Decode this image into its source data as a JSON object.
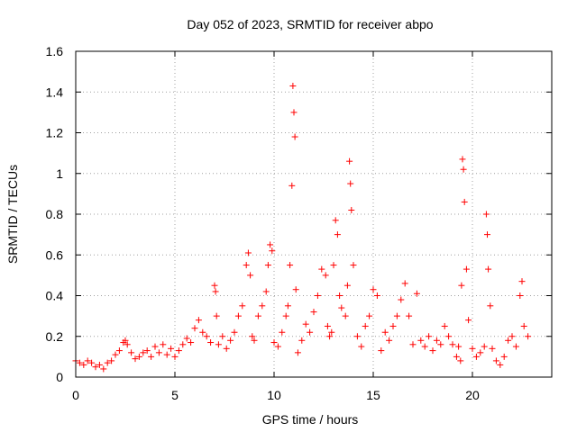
{
  "chart_data": {
    "type": "scatter",
    "title": "Day 052 of 2023, SRMTID for receiver abpo",
    "xlabel": "GPS time / hours",
    "ylabel": "SRMTID / TECUs",
    "xlim": [
      0,
      24
    ],
    "ylim": [
      0,
      1.6
    ],
    "xticks": [
      "0",
      "5",
      "10",
      "15",
      "20"
    ],
    "xtick_values": [
      0,
      5,
      10,
      15,
      20
    ],
    "yticks": [
      "0",
      "0.2",
      "0.4",
      "0.6",
      "0.8",
      "1",
      "1.2",
      "1.4",
      "1.6"
    ],
    "ytick_values": [
      0,
      0.2,
      0.4,
      0.6,
      0.8,
      1.0,
      1.2,
      1.4,
      1.6
    ],
    "grid": true,
    "marker": "+",
    "color": "#ff0000",
    "series": [
      {
        "name": "SRMTID",
        "x": [
          0.0,
          0.2,
          0.4,
          0.6,
          0.8,
          1.0,
          1.2,
          1.4,
          1.6,
          1.8,
          2.0,
          2.2,
          2.4,
          2.5,
          2.6,
          2.8,
          3.0,
          3.2,
          3.4,
          3.6,
          3.8,
          4.0,
          4.2,
          4.4,
          4.6,
          4.8,
          5.0,
          5.2,
          5.4,
          5.6,
          5.8,
          6.0,
          6.2,
          6.4,
          6.6,
          6.8,
          7.0,
          7.05,
          7.1,
          7.2,
          7.4,
          7.6,
          7.8,
          8.0,
          8.2,
          8.4,
          8.6,
          8.7,
          8.8,
          8.9,
          9.0,
          9.2,
          9.4,
          9.6,
          9.7,
          9.8,
          9.9,
          10.0,
          10.2,
          10.4,
          10.6,
          10.7,
          10.8,
          10.9,
          10.95,
          11.0,
          11.05,
          11.1,
          11.2,
          11.4,
          11.6,
          11.8,
          12.0,
          12.2,
          12.4,
          12.6,
          12.7,
          12.8,
          12.9,
          13.0,
          13.1,
          13.2,
          13.3,
          13.4,
          13.6,
          13.7,
          13.8,
          13.85,
          13.9,
          14.0,
          14.2,
          14.4,
          14.6,
          14.8,
          15.0,
          15.2,
          15.4,
          15.6,
          15.8,
          16.0,
          16.2,
          16.4,
          16.6,
          16.8,
          17.0,
          17.2,
          17.4,
          17.6,
          17.8,
          18.0,
          18.2,
          18.4,
          18.6,
          18.8,
          19.0,
          19.2,
          19.3,
          19.4,
          19.45,
          19.5,
          19.55,
          19.6,
          19.7,
          19.8,
          20.0,
          20.2,
          20.4,
          20.6,
          20.7,
          20.75,
          20.8,
          20.9,
          21.0,
          21.2,
          21.4,
          21.6,
          21.8,
          22.0,
          22.2,
          22.4,
          22.5,
          22.6,
          22.8
        ],
        "y": [
          0.08,
          0.07,
          0.06,
          0.08,
          0.07,
          0.05,
          0.06,
          0.04,
          0.07,
          0.08,
          0.11,
          0.13,
          0.17,
          0.18,
          0.16,
          0.12,
          0.09,
          0.1,
          0.12,
          0.13,
          0.1,
          0.15,
          0.12,
          0.16,
          0.11,
          0.14,
          0.1,
          0.13,
          0.16,
          0.19,
          0.17,
          0.24,
          0.28,
          0.22,
          0.2,
          0.17,
          0.45,
          0.42,
          0.3,
          0.16,
          0.2,
          0.14,
          0.18,
          0.22,
          0.3,
          0.35,
          0.55,
          0.61,
          0.5,
          0.2,
          0.18,
          0.3,
          0.35,
          0.42,
          0.55,
          0.65,
          0.62,
          0.17,
          0.15,
          0.22,
          0.3,
          0.35,
          0.55,
          0.94,
          1.43,
          1.3,
          1.18,
          0.43,
          0.12,
          0.18,
          0.26,
          0.22,
          0.32,
          0.4,
          0.53,
          0.5,
          0.25,
          0.2,
          0.22,
          0.55,
          0.77,
          0.7,
          0.4,
          0.34,
          0.3,
          0.45,
          1.06,
          0.95,
          0.82,
          0.55,
          0.2,
          0.15,
          0.25,
          0.3,
          0.43,
          0.4,
          0.13,
          0.22,
          0.18,
          0.25,
          0.3,
          0.38,
          0.46,
          0.3,
          0.16,
          0.41,
          0.18,
          0.15,
          0.2,
          0.13,
          0.18,
          0.16,
          0.25,
          0.2,
          0.16,
          0.1,
          0.15,
          0.08,
          0.45,
          1.07,
          1.02,
          0.86,
          0.53,
          0.28,
          0.14,
          0.1,
          0.12,
          0.15,
          0.8,
          0.7,
          0.53,
          0.35,
          0.14,
          0.08,
          0.06,
          0.1,
          0.18,
          0.2,
          0.15,
          0.4,
          0.47,
          0.25,
          0.2
        ]
      }
    ]
  }
}
